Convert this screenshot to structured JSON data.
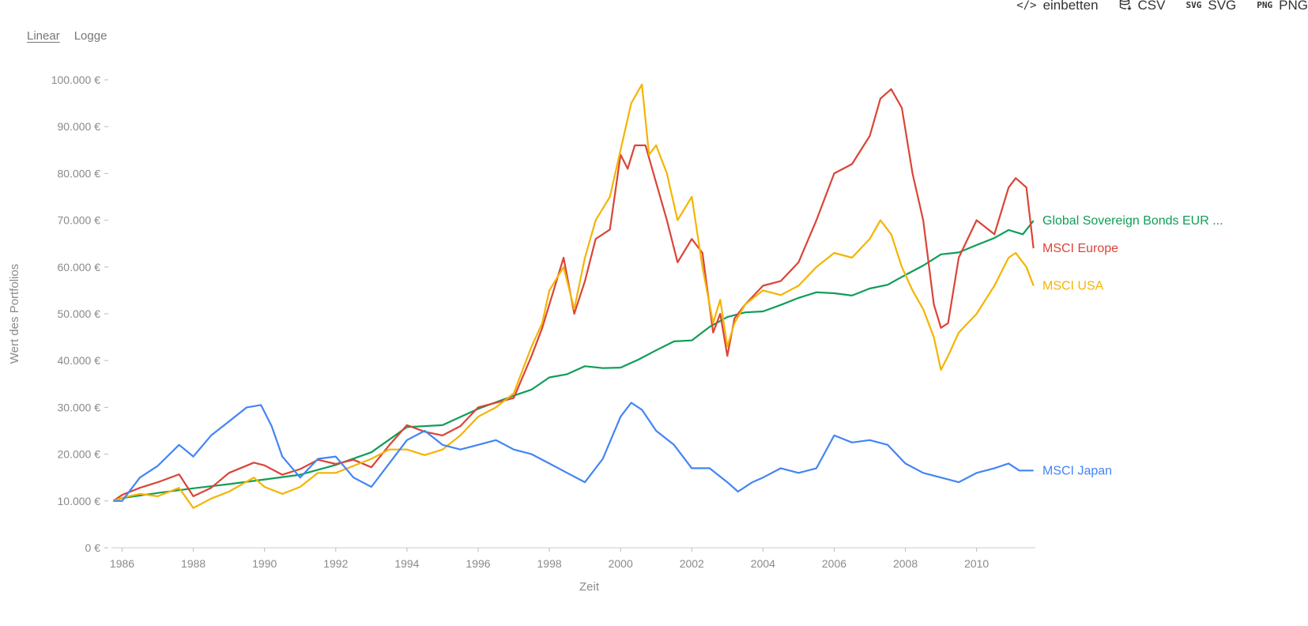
{
  "toolbar": {
    "embed_label": "einbetten",
    "csv_label": "CSV",
    "svg_label": "SVG",
    "png_label": "PNG"
  },
  "scale_toggle": {
    "linear_label": "Linear",
    "log_label": "Logge",
    "active": "linear"
  },
  "chart_data": {
    "type": "line",
    "title": "",
    "xlabel": "Zeit",
    "ylabel": "Wert des Portfolios",
    "xlim": [
      1985.7,
      2011.65
    ],
    "ylim": [
      0,
      100000
    ],
    "x_ticks": [
      "1986",
      "1988",
      "1990",
      "1992",
      "1994",
      "1996",
      "1998",
      "2000",
      "2002",
      "2004",
      "2006",
      "2008",
      "2010"
    ],
    "y_ticks": [
      "0 €",
      "10.000 €",
      "20.000 €",
      "30.000 €",
      "40.000 €",
      "50.000 €",
      "60.000 €",
      "70.000 €",
      "80.000 €",
      "90.000 €",
      "100.000 €"
    ],
    "grid": false,
    "series": [
      {
        "name": "Global Sovereign Bonds EUR ...",
        "color": "#0f9d58",
        "x": [
          1985.75,
          1986,
          1987,
          1988,
          1989,
          1990,
          1991,
          1992,
          1993,
          1994,
          1995,
          1996,
          1997,
          1997.5,
          1998,
          1998.5,
          1999,
          1999.5,
          2000,
          2000.5,
          2001,
          2001.5,
          2002,
          2002.5,
          2003,
          2003.5,
          2004,
          2004.5,
          2005,
          2005.5,
          2006,
          2006.5,
          2007,
          2007.5,
          2008,
          2008.5,
          2009,
          2009.5,
          2010,
          2010.5,
          2010.9,
          2011.3,
          2011.6
        ],
        "y": [
          10000,
          10600,
          11700,
          12700,
          13600,
          14600,
          15600,
          17700,
          20400,
          25800,
          26200,
          29700,
          32500,
          33800,
          36400,
          37100,
          38800,
          38400,
          38500,
          40200,
          42200,
          44100,
          44300,
          47200,
          49300,
          50300,
          50500,
          51900,
          53400,
          54600,
          54400,
          53900,
          55400,
          56200,
          58300,
          60300,
          62700,
          63100,
          64700,
          66200,
          67900,
          67000,
          69900
        ]
      },
      {
        "name": "MSCI Europe",
        "color": "#db4437",
        "x": [
          1985.75,
          1986,
          1986.5,
          1987,
          1987.6,
          1988,
          1988.5,
          1989,
          1989.7,
          1990,
          1990.5,
          1991,
          1991.5,
          1992,
          1992.5,
          1993,
          1993.5,
          1994,
          1994.5,
          1995,
          1995.5,
          1996,
          1996.5,
          1997,
          1997.5,
          1997.8,
          1998,
          1998.4,
          1998.7,
          1999,
          1999.3,
          1999.7,
          2000,
          2000.2,
          2000.4,
          2000.7,
          2001,
          2001.3,
          2001.6,
          2002,
          2002.3,
          2002.6,
          2002.8,
          2003,
          2003.2,
          2003.5,
          2004,
          2004.5,
          2005,
          2005.5,
          2006,
          2006.5,
          2007,
          2007.3,
          2007.6,
          2007.9,
          2008.2,
          2008.5,
          2008.8,
          2009,
          2009.2,
          2009.5,
          2010,
          2010.5,
          2010.9,
          2011.1,
          2011.4,
          2011.6
        ],
        "y": [
          10000,
          11300,
          12800,
          14000,
          15700,
          11000,
          12800,
          16000,
          18200,
          17600,
          15600,
          16800,
          18800,
          17900,
          18800,
          17200,
          21900,
          26200,
          24800,
          24000,
          26000,
          30000,
          31000,
          32000,
          41000,
          47000,
          52000,
          62000,
          50000,
          57000,
          66000,
          68000,
          84000,
          81000,
          86000,
          86000,
          78000,
          70000,
          61000,
          66000,
          63000,
          46000,
          50000,
          41000,
          49000,
          52000,
          56000,
          57000,
          61000,
          70000,
          80000,
          82000,
          88000,
          96000,
          98000,
          94000,
          80000,
          70000,
          52000,
          47000,
          48000,
          62000,
          70000,
          67000,
          77000,
          79000,
          77000,
          64000
        ]
      },
      {
        "name": "MSCI USA",
        "color": "#f4b400",
        "x": [
          1985.75,
          1986,
          1986.5,
          1987,
          1987.6,
          1988,
          1988.5,
          1989,
          1989.7,
          1990,
          1990.5,
          1991,
          1991.5,
          1992,
          1992.5,
          1993,
          1993.5,
          1994,
          1994.5,
          1995,
          1995.5,
          1996,
          1996.5,
          1997,
          1997.5,
          1997.8,
          1998,
          1998.4,
          1998.7,
          1999,
          1999.3,
          1999.7,
          2000,
          2000.3,
          2000.6,
          2000.8,
          2001,
          2001.3,
          2001.6,
          2002,
          2002.3,
          2002.6,
          2002.8,
          2003,
          2003.2,
          2003.5,
          2004,
          2004.5,
          2005,
          2005.5,
          2006,
          2006.5,
          2007,
          2007.3,
          2007.6,
          2007.9,
          2008.2,
          2008.5,
          2008.8,
          2009,
          2009.2,
          2009.5,
          2010,
          2010.5,
          2010.9,
          2011.1,
          2011.4,
          2011.6
        ],
        "y": [
          10000,
          10700,
          11500,
          11000,
          12800,
          8500,
          10500,
          12000,
          15000,
          13000,
          11500,
          13000,
          16000,
          16000,
          17500,
          19000,
          21000,
          21000,
          19800,
          21000,
          24000,
          28000,
          30000,
          33000,
          43000,
          48000,
          55000,
          60000,
          51000,
          62000,
          70000,
          75000,
          85000,
          95000,
          99000,
          84000,
          86000,
          80000,
          70000,
          75000,
          60000,
          48000,
          53000,
          43000,
          48000,
          52000,
          55000,
          54000,
          56000,
          60000,
          63000,
          62000,
          66000,
          70000,
          67000,
          60000,
          55000,
          51000,
          45000,
          38000,
          41000,
          46000,
          50000,
          56000,
          62000,
          63000,
          60000,
          56000
        ]
      },
      {
        "name": "MSCI Japan",
        "color": "#4285f4",
        "x": [
          1985.75,
          1986,
          1986.5,
          1987,
          1987.6,
          1988,
          1988.5,
          1989,
          1989.5,
          1989.9,
          1990.2,
          1990.5,
          1991,
          1991.5,
          1992,
          1992.5,
          1993,
          1993.5,
          1994,
          1994.5,
          1995,
          1995.5,
          1996,
          1996.5,
          1997,
          1997.5,
          1998,
          1998.5,
          1999,
          1999.5,
          2000,
          2000.3,
          2000.6,
          2001,
          2001.5,
          2002,
          2002.5,
          2003,
          2003.3,
          2003.7,
          2004,
          2004.5,
          2005,
          2005.5,
          2006,
          2006.5,
          2007,
          2007.5,
          2008,
          2008.5,
          2009,
          2009.5,
          2010,
          2010.5,
          2010.9,
          2011.2,
          2011.6
        ],
        "y": [
          10000,
          10000,
          15000,
          17500,
          22000,
          19500,
          24000,
          27000,
          30000,
          30500,
          26000,
          19500,
          15000,
          19000,
          19500,
          15000,
          13000,
          18000,
          23000,
          25000,
          22000,
          21000,
          22000,
          23000,
          21000,
          20000,
          18000,
          16000,
          14000,
          19000,
          28000,
          31000,
          29500,
          25000,
          22000,
          17000,
          17000,
          14000,
          12000,
          14000,
          15000,
          17000,
          16000,
          17000,
          24000,
          22500,
          23000,
          22000,
          18000,
          16000,
          15000,
          14000,
          16000,
          17000,
          18000,
          16500,
          16500
        ]
      }
    ]
  }
}
